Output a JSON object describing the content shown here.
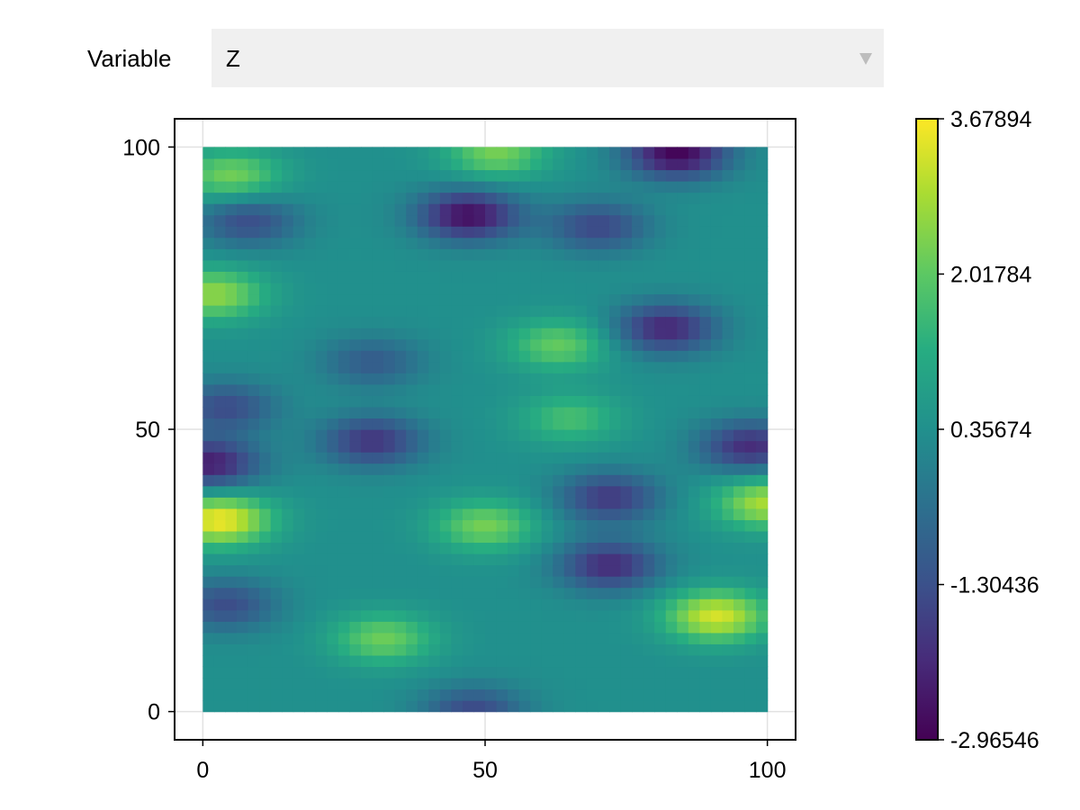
{
  "menu": {
    "label": "Variable",
    "selected": "Z"
  },
  "chart_data": {
    "type": "heatmap",
    "title": "",
    "xlabel": "",
    "ylabel": "",
    "xlim": [
      -5,
      105
    ],
    "ylim": [
      -5,
      105
    ],
    "x_ticks": [
      "0",
      "50",
      "100"
    ],
    "y_ticks": [
      "0",
      "50",
      "100"
    ],
    "x_tick_values": [
      0,
      50,
      100
    ],
    "y_tick_values": [
      0,
      50,
      100
    ],
    "grid": true,
    "colormap": "viridis",
    "colorbar": {
      "range": [
        -2.96546,
        3.67894
      ],
      "tick_labels": [
        "-2.96546",
        "-1.30436",
        "0.35674",
        "2.01784",
        "3.67894"
      ],
      "tick_values": [
        -2.96546,
        -1.30436,
        0.35674,
        2.01784,
        3.67894
      ]
    },
    "features": [
      {
        "x": 3,
        "y": 34,
        "value": 3.6
      },
      {
        "x": 91,
        "y": 17,
        "value": 3.3
      },
      {
        "x": 100,
        "y": 37,
        "value": 2.9
      },
      {
        "x": 2,
        "y": 74,
        "value": 2.6
      },
      {
        "x": 50,
        "y": 33,
        "value": 2.3
      },
      {
        "x": 32,
        "y": 13,
        "value": 2.2
      },
      {
        "x": 5,
        "y": 95,
        "value": 2.3
      },
      {
        "x": 52,
        "y": 99,
        "value": 2.3
      },
      {
        "x": 63,
        "y": 65,
        "value": 2.1
      },
      {
        "x": 65,
        "y": 52,
        "value": 1.7
      },
      {
        "x": 84,
        "y": 99,
        "value": -2.9
      },
      {
        "x": 47,
        "y": 88,
        "value": -2.7
      },
      {
        "x": 82,
        "y": 68,
        "value": -2.2
      },
      {
        "x": 1,
        "y": 44,
        "value": -2.4
      },
      {
        "x": 30,
        "y": 48,
        "value": -1.9
      },
      {
        "x": 72,
        "y": 26,
        "value": -2.1
      },
      {
        "x": 72,
        "y": 38,
        "value": -1.8
      },
      {
        "x": 97,
        "y": 47,
        "value": -2.1
      },
      {
        "x": 70,
        "y": 86,
        "value": -1.5
      },
      {
        "x": 8,
        "y": 87,
        "value": -1.4
      },
      {
        "x": 4,
        "y": 19,
        "value": -1.4
      },
      {
        "x": 48,
        "y": 0,
        "value": -1.5
      },
      {
        "x": 4,
        "y": 54,
        "value": -1.4
      },
      {
        "x": 30,
        "y": 62,
        "value": -1.0
      }
    ],
    "base_value": 0.35
  },
  "colors": {
    "menu_bg": "#f0f0f0",
    "menu_arrow": "#bdbdbd",
    "grid": "#e2e2e2",
    "axis": "#000000"
  }
}
